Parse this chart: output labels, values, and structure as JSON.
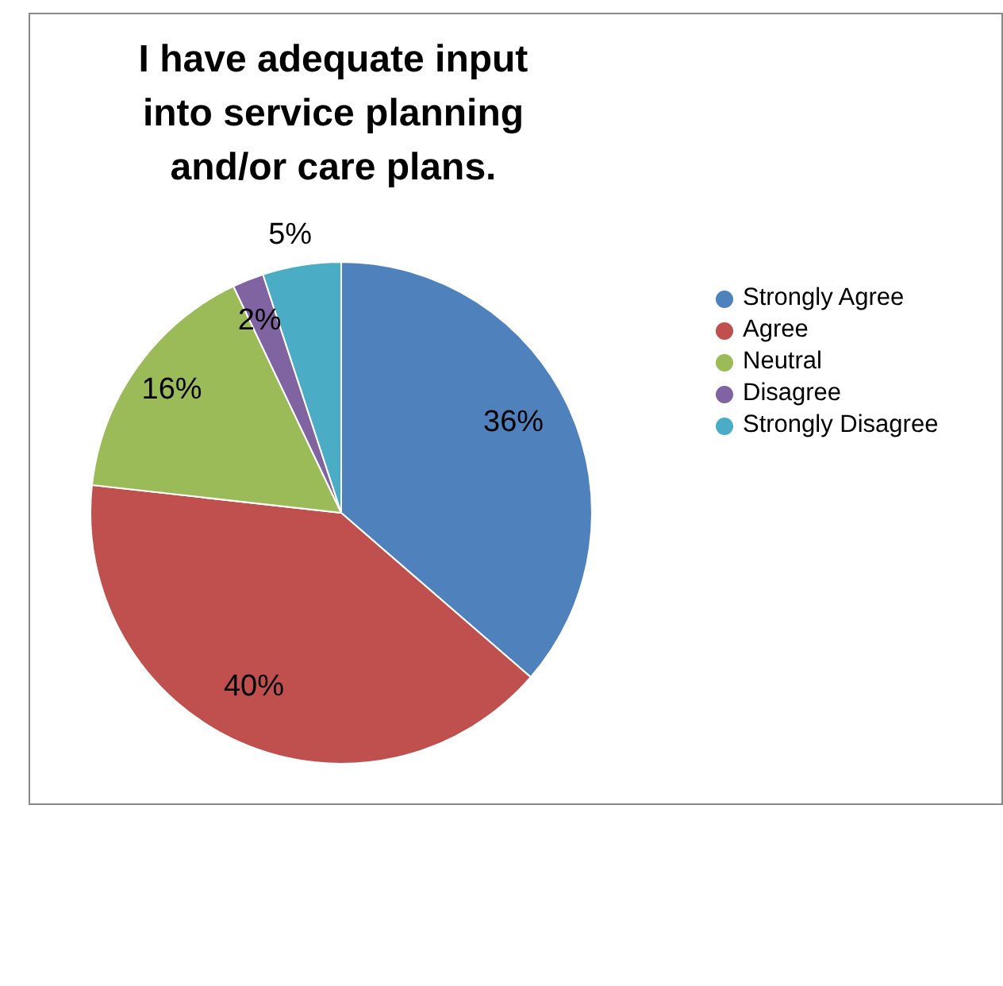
{
  "chart_data": {
    "type": "pie",
    "title": "I have adequate input into service planning and/or care plans.",
    "categories": [
      "Strongly Agree",
      "Agree",
      "Neutral",
      "Disagree",
      "Strongly Disagree"
    ],
    "values": [
      36,
      40,
      16,
      2,
      5
    ],
    "colors": [
      "#4f81bd",
      "#c0504d",
      "#9bbb59",
      "#8064a2",
      "#4bacc6"
    ],
    "value_labels": [
      "36%",
      "40%",
      "16%",
      "2%",
      "5%"
    ],
    "legend": "right"
  }
}
